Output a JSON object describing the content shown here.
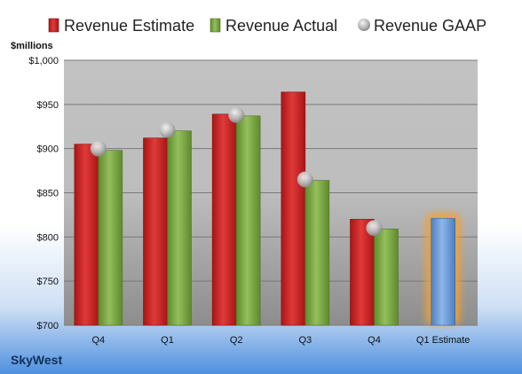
{
  "chart_data": {
    "type": "bar",
    "unit_label": "$millions",
    "company": "SkyWest",
    "categories": [
      "Q4",
      "Q1",
      "Q2",
      "Q3",
      "Q4",
      "Q1 Estimate"
    ],
    "ylim": [
      700,
      1000
    ],
    "yticks": [
      700,
      750,
      800,
      850,
      900,
      950,
      1000
    ],
    "ytick_labels": [
      "$700",
      "$750",
      "$800",
      "$850",
      "$900",
      "$950",
      "$1,000"
    ],
    "grid": true,
    "legend_position": "top",
    "series": [
      {
        "name": "Revenue Estimate",
        "kind": "bar",
        "color": "#d42a2a",
        "values": [
          905,
          912,
          939,
          964,
          820,
          null
        ]
      },
      {
        "name": "Revenue Actual",
        "kind": "bar",
        "color": "#7da544",
        "values": [
          898,
          920,
          937,
          864,
          809,
          null
        ]
      },
      {
        "name": "Revenue GAAP",
        "kind": "marker",
        "color": "#b8b8b8",
        "values": [
          900,
          921,
          938,
          865,
          810,
          null
        ]
      }
    ],
    "estimate_bar": {
      "category_index": 5,
      "value": 821,
      "color": "#6f9fdc",
      "glow_color": "#f5a030"
    }
  }
}
